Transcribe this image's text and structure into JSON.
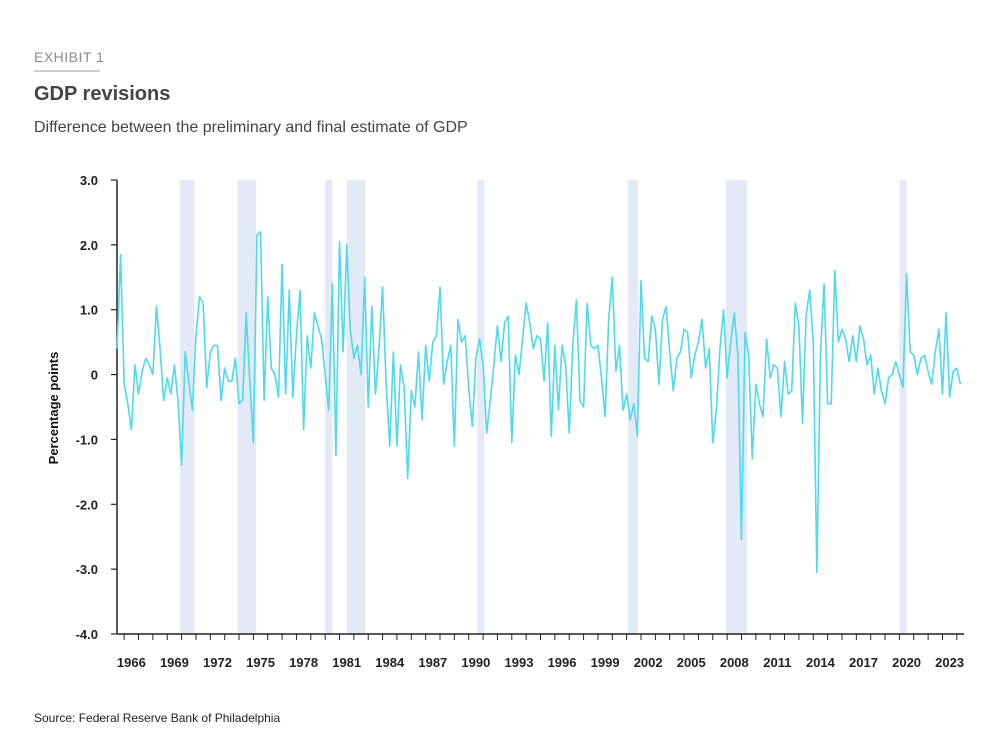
{
  "header": {
    "exhibit": "EXHIBIT 1",
    "title": "GDP revisions",
    "subtitle": "Difference between the preliminary and final estimate of GDP"
  },
  "source": "Source: Federal Reserve Bank of Philadelphia",
  "colors": {
    "line": "#4dd9f0",
    "recession": "#e4e9f6",
    "axis": "#222222"
  },
  "chart_data": {
    "type": "line",
    "title": "GDP revisions",
    "ylabel": "Percentage points",
    "xlabel": "",
    "ylim": [
      -4.0,
      3.0
    ],
    "xlim": [
      1965.5,
      2024.5
    ],
    "yticks": [
      3.0,
      2.0,
      1.0,
      0,
      -1.0,
      -2.0,
      -3.0,
      -4.0
    ],
    "ytick_labels": [
      "3.0",
      "2.0",
      "1.0",
      "0",
      "-1.0",
      "-2.0",
      "-3.0",
      "-4.0"
    ],
    "xtick_labels": [
      "1966",
      "1969",
      "1972",
      "1975",
      "1978",
      "1981",
      "1984",
      "1987",
      "1990",
      "1993",
      "1996",
      "1999",
      "2002",
      "2005",
      "2008",
      "2011",
      "2014",
      "2017",
      "2020",
      "2023"
    ],
    "recessions": [
      [
        1969.9,
        1970.9
      ],
      [
        1973.9,
        1975.2
      ],
      [
        1980.0,
        1980.5
      ],
      [
        1981.5,
        1982.8
      ],
      [
        1990.6,
        1991.1
      ],
      [
        2001.1,
        2001.8
      ],
      [
        2007.9,
        2009.4
      ],
      [
        2020.0,
        2020.5
      ]
    ],
    "series": [
      {
        "name": "Revision (percentage points)",
        "x_start": 1965.5,
        "x_step": 0.25,
        "values": [
          0.4,
          1.85,
          -0.15,
          -0.45,
          -0.85,
          0.15,
          -0.3,
          0.05,
          0.25,
          0.15,
          0.0,
          1.05,
          0.4,
          -0.4,
          -0.05,
          -0.3,
          0.15,
          -0.4,
          -1.4,
          0.35,
          -0.1,
          -0.55,
          0.6,
          1.2,
          1.1,
          -0.2,
          0.35,
          0.45,
          0.45,
          -0.4,
          0.1,
          -0.1,
          -0.1,
          0.25,
          -0.45,
          -0.4,
          0.95,
          -0.1,
          -1.05,
          2.15,
          2.2,
          -0.4,
          1.2,
          0.1,
          0.0,
          -0.35,
          1.7,
          -0.3,
          1.3,
          -0.35,
          0.6,
          1.3,
          -0.85,
          0.6,
          0.1,
          0.95,
          0.75,
          0.55,
          0.0,
          -0.55,
          1.4,
          -1.25,
          2.05,
          0.35,
          2.0,
          0.7,
          0.25,
          0.45,
          0.0,
          1.5,
          -0.5,
          1.05,
          -0.3,
          0.4,
          1.35,
          -0.15,
          -1.1,
          0.35,
          -1.1,
          0.15,
          -0.2,
          -1.6,
          -0.25,
          -0.5,
          0.35,
          -0.7,
          0.45,
          -0.1,
          0.5,
          0.6,
          1.35,
          -0.15,
          0.2,
          0.45,
          -1.1,
          0.85,
          0.5,
          0.6,
          -0.2,
          -0.8,
          0.25,
          0.55,
          0.15,
          -0.9,
          -0.4,
          0.15,
          0.75,
          0.2,
          0.8,
          0.9,
          -1.05,
          0.3,
          0.0,
          0.55,
          1.1,
          0.8,
          0.4,
          0.6,
          0.55,
          -0.1,
          0.8,
          -0.95,
          0.45,
          -0.55,
          0.45,
          0.15,
          -0.9,
          0.45,
          1.15,
          -0.4,
          -0.5,
          1.1,
          0.45,
          0.4,
          0.45,
          -0.05,
          -0.65,
          0.85,
          1.5,
          0.05,
          0.45,
          -0.55,
          -0.3,
          -0.7,
          -0.45,
          -0.95,
          1.45,
          0.25,
          0.2,
          0.9,
          0.7,
          -0.15,
          0.85,
          1.05,
          0.35,
          -0.25,
          0.25,
          0.35,
          0.7,
          0.65,
          -0.05,
          0.3,
          0.5,
          0.85,
          0.1,
          0.4,
          -1.05,
          -0.55,
          0.4,
          1.0,
          -0.05,
          0.5,
          0.95,
          0.3,
          -2.55,
          0.65,
          0.3,
          -1.3,
          -0.15,
          -0.45,
          -0.65,
          0.55,
          -0.05,
          0.15,
          0.1,
          -0.65,
          0.2,
          -0.3,
          -0.25,
          1.1,
          0.75,
          -0.75,
          0.9,
          1.3,
          0.5,
          -3.05,
          0.3,
          1.4,
          -0.45,
          -0.45,
          1.6,
          0.5,
          0.7,
          0.55,
          0.2,
          0.6,
          0.2,
          0.75,
          0.55,
          0.15,
          0.3,
          -0.3,
          0.1,
          -0.25,
          -0.45,
          -0.05,
          0.0,
          0.2,
          0.0,
          -0.2,
          1.55,
          0.35,
          0.3,
          0.0,
          0.25,
          0.3,
          0.05,
          -0.15,
          0.35,
          0.7,
          -0.3,
          0.95,
          -0.35,
          0.05,
          0.1,
          -0.15
        ]
      }
    ]
  }
}
